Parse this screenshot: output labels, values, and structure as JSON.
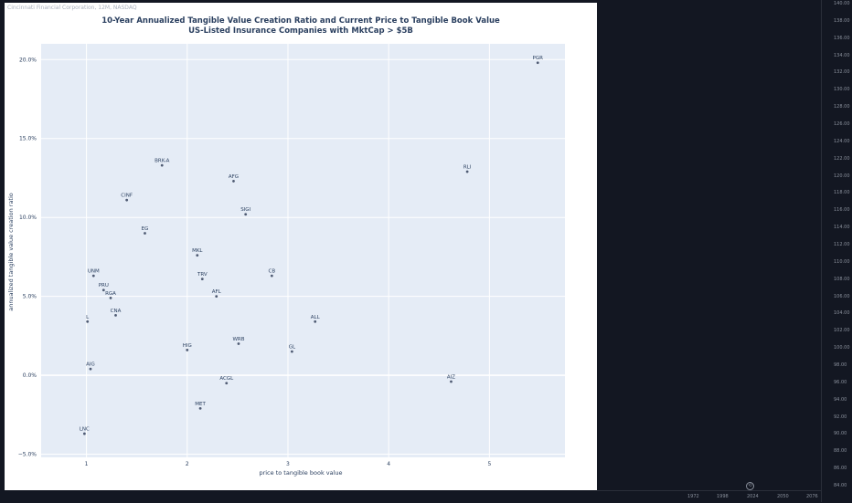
{
  "symbol_info": "Cincinnati Financial Corporation, 12M, NASDAQ",
  "price_axis": {
    "min": 84,
    "max": 140,
    "step": 2,
    "labels": [
      "140.00",
      "138.00",
      "136.00",
      "134.00",
      "132.00",
      "130.00",
      "128.00",
      "126.00",
      "124.00",
      "122.00",
      "120.00",
      "118.00",
      "116.00",
      "114.00",
      "112.00",
      "110.00",
      "108.00",
      "106.00",
      "104.00",
      "102.00",
      "100.00",
      "98.00",
      "96.00",
      "94.00",
      "92.00",
      "90.00",
      "88.00",
      "86.00",
      "84.00"
    ]
  },
  "time_axis": {
    "labels": [
      "1972",
      "1998",
      "2024",
      "2050",
      "2076"
    ]
  },
  "colors": {
    "background": "#131722",
    "plot_bg": "#e5ecf6",
    "marker": "#4f5b73",
    "text": "#2a3f5f"
  },
  "chart_data": {
    "type": "scatter",
    "title": "10-Year Annualized Tangible Value Creation Ratio and Current Price to Tangible Book Value",
    "subtitle": "US-Listed Insurance Companies with MktCap > $5B",
    "xlabel": "price to tangible book value",
    "ylabel": "annualized tangible value creation ratio",
    "xlim": [
      0.55,
      5.75
    ],
    "ylim": [
      -5.2,
      21.0
    ],
    "xticks": [
      1,
      2,
      3,
      4,
      5
    ],
    "xtick_labels": [
      "1",
      "2",
      "3",
      "4",
      "5"
    ],
    "yticks": [
      -5,
      0,
      5,
      10,
      15,
      20
    ],
    "ytick_labels": [
      "−5.0%",
      "0.0%",
      "5.0%",
      "10.0%",
      "15.0%",
      "20.0%"
    ],
    "grid": true,
    "points": [
      {
        "label": "PGR",
        "x": 5.48,
        "y": 19.8
      },
      {
        "label": "RLI",
        "x": 4.78,
        "y": 12.9
      },
      {
        "label": "BRK-A",
        "x": 1.75,
        "y": 13.3
      },
      {
        "label": "AFG",
        "x": 2.46,
        "y": 12.3
      },
      {
        "label": "SIGI",
        "x": 2.58,
        "y": 10.2
      },
      {
        "label": "CINF",
        "x": 1.4,
        "y": 11.1
      },
      {
        "label": "EG",
        "x": 1.58,
        "y": 9.0
      },
      {
        "label": "MKL",
        "x": 2.1,
        "y": 7.6
      },
      {
        "label": "UNM",
        "x": 1.07,
        "y": 6.3
      },
      {
        "label": "TRV",
        "x": 2.15,
        "y": 6.1
      },
      {
        "label": "CB",
        "x": 2.84,
        "y": 6.3
      },
      {
        "label": "PRU",
        "x": 1.17,
        "y": 5.4
      },
      {
        "label": "RGA",
        "x": 1.24,
        "y": 4.9
      },
      {
        "label": "AFL",
        "x": 2.29,
        "y": 5.0
      },
      {
        "label": "CNA",
        "x": 1.29,
        "y": 3.8
      },
      {
        "label": "L",
        "x": 1.01,
        "y": 3.4
      },
      {
        "label": "ALL",
        "x": 3.27,
        "y": 3.4
      },
      {
        "label": "WRB",
        "x": 2.51,
        "y": 2.0
      },
      {
        "label": "HIG",
        "x": 2.0,
        "y": 1.6
      },
      {
        "label": "GL",
        "x": 3.04,
        "y": 1.5
      },
      {
        "label": "AIG",
        "x": 1.04,
        "y": 0.4
      },
      {
        "label": "AIZ",
        "x": 4.62,
        "y": -0.4
      },
      {
        "label": "ACGL",
        "x": 2.39,
        "y": -0.5
      },
      {
        "label": "MET",
        "x": 2.13,
        "y": -2.1
      },
      {
        "label": "LNC",
        "x": 0.98,
        "y": -3.7
      }
    ]
  }
}
